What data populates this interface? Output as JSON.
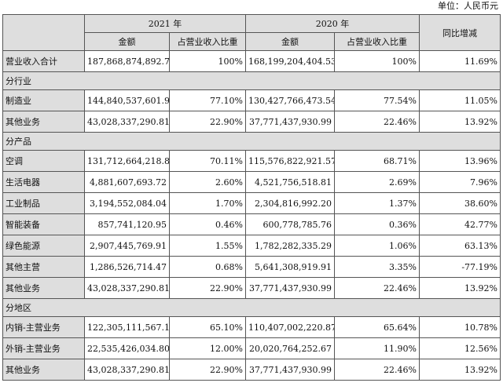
{
  "unit_label": "单位：人民币元",
  "header": {
    "year_2021": "2021 年",
    "year_2020": "2020 年",
    "yoy": "同比增减",
    "amount": "金额",
    "ratio": "占营业收入比重"
  },
  "total": {
    "label": "营业收入合计",
    "a2021": "187,868,874,892.71",
    "r2021": "100%",
    "a2020": "168,199,204,404.53",
    "r2020": "100%",
    "yoy": "11.69%"
  },
  "sections": [
    {
      "title": "分行业",
      "rows": [
        {
          "label": "制造业",
          "a2021": "144,840,537,601.90",
          "r2021": "77.10%",
          "a2020": "130,427,766,473.54",
          "r2020": "77.54%",
          "yoy": "11.05%"
        },
        {
          "label": "其他业务",
          "a2021": "43,028,337,290.81",
          "r2021": "22.90%",
          "a2020": "37,771,437,930.99",
          "r2020": "22.46%",
          "yoy": "13.92%"
        }
      ]
    },
    {
      "title": "分产品",
      "rows": [
        {
          "label": "空调",
          "a2021": "131,712,664,218.81",
          "r2021": "70.11%",
          "a2020": "115,576,822,921.57",
          "r2020": "68.71%",
          "yoy": "13.96%"
        },
        {
          "label": "生活电器",
          "a2021": "4,881,607,693.72",
          "r2021": "2.60%",
          "a2020": "4,521,756,518.81",
          "r2020": "2.69%",
          "yoy": "7.96%"
        },
        {
          "label": "工业制品",
          "a2021": "3,194,552,084.04",
          "r2021": "1.70%",
          "a2020": "2,304,816,992.20",
          "r2020": "1.37%",
          "yoy": "38.60%"
        },
        {
          "label": "智能装备",
          "a2021": "857,741,120.95",
          "r2021": "0.46%",
          "a2020": "600,778,785.76",
          "r2020": "0.36%",
          "yoy": "42.77%"
        },
        {
          "label": "绿色能源",
          "a2021": "2,907,445,769.91",
          "r2021": "1.55%",
          "a2020": "1,782,282,335.29",
          "r2020": "1.06%",
          "yoy": "63.13%"
        },
        {
          "label": "其他主营",
          "a2021": "1,286,526,714.47",
          "r2021": "0.68%",
          "a2020": "5,641,308,919.91",
          "r2020": "3.35%",
          "yoy": "-77.19%"
        },
        {
          "label": "其他业务",
          "a2021": "43,028,337,290.81",
          "r2021": "22.90%",
          "a2020": "37,771,437,930.99",
          "r2020": "22.46%",
          "yoy": "13.92%"
        }
      ]
    },
    {
      "title": "分地区",
      "rows": [
        {
          "label": "内销-主营业务",
          "a2021": "122,305,111,567.10",
          "r2021": "65.10%",
          "a2020": "110,407,002,220.87",
          "r2020": "65.64%",
          "yoy": "10.78%"
        },
        {
          "label": "外销-主营业务",
          "a2021": "22,535,426,034.80",
          "r2021": "12.00%",
          "a2020": "20,020,764,252.67",
          "r2020": "11.90%",
          "yoy": "12.56%"
        },
        {
          "label": "其他业务",
          "a2021": "43,028,337,290.81",
          "r2021": "22.90%",
          "a2020": "37,771,437,930.99",
          "r2020": "22.46%",
          "yoy": "13.92%"
        }
      ]
    }
  ]
}
